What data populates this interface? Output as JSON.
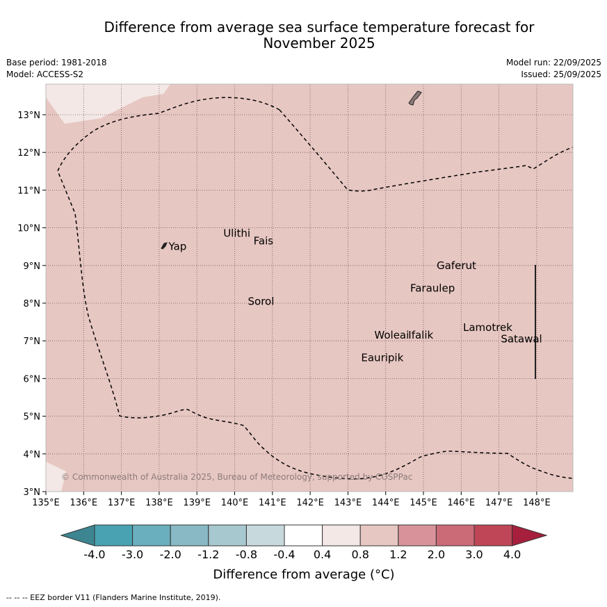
{
  "title_line1": "Difference from average sea surface temperature forecast for",
  "title_line2": "November 2025",
  "base_period": "Base period: 1981-2018",
  "model": "Model: ACCESS-S2",
  "model_run": "Model run: 22/09/2025",
  "issued": "Issued: 25/09/2025",
  "copyright": "© Commonwealth of Australia 2025, Bureau of Meteorology, supported by COSPPac",
  "footer": "-- -- -- EEZ border V11 (Flanders Marine Institute, 2019).",
  "colorbar": {
    "label": "Difference from average (°C)",
    "tick_labels": [
      "-4.0",
      "-3.0",
      "-2.0",
      "-1.2",
      "-0.8",
      "-0.4",
      "0.4",
      "0.8",
      "1.2",
      "2.0",
      "3.0",
      "4.0"
    ],
    "colors": [
      "#3d8591",
      "#48a2b2",
      "#6aafbd",
      "#88b9c5",
      "#a8c8cf",
      "#c7d9dc",
      "#ffffff",
      "#f3e8e6",
      "#e7c7c2",
      "#d8939a",
      "#cc6b78",
      "#bf4656",
      "#a6203d"
    ]
  },
  "chart_data": {
    "type": "map",
    "title": "Difference from average sea surface temperature forecast for November 2025",
    "x_range_lon": [
      135,
      149
    ],
    "y_range_lat": [
      3,
      13.8
    ],
    "x_tick_labels": [
      "135°E",
      "136°E",
      "137°E",
      "138°E",
      "139°E",
      "140°E",
      "141°E",
      "142°E",
      "143°E",
      "144°E",
      "145°E",
      "146°E",
      "147°E",
      "148°E"
    ],
    "y_tick_labels": [
      "3°N",
      "4°N",
      "5°N",
      "6°N",
      "7°N",
      "8°N",
      "9°N",
      "10°N",
      "11°N",
      "12°N",
      "13°N"
    ],
    "background_category": "0.8 to 1.2",
    "places": [
      {
        "name": "Yap",
        "lon": 138.25,
        "lat": 9.5
      },
      {
        "name": "Ulithi",
        "lon": 139.7,
        "lat": 9.85
      },
      {
        "name": "Fais",
        "lon": 140.5,
        "lat": 9.65
      },
      {
        "name": "Gaferut",
        "lon": 145.35,
        "lat": 9.0
      },
      {
        "name": "Faraulep",
        "lon": 144.65,
        "lat": 8.4
      },
      {
        "name": "Sorol",
        "lon": 140.35,
        "lat": 8.05
      },
      {
        "name": "Lamotrek",
        "lon": 146.05,
        "lat": 7.35
      },
      {
        "name": "Woleai",
        "lon": 143.7,
        "lat": 7.15
      },
      {
        "name": "Ifalik",
        "lon": 144.6,
        "lat": 7.15
      },
      {
        "name": "Satawal",
        "lon": 147.05,
        "lat": 7.05
      },
      {
        "name": "Eauripik",
        "lon": 143.35,
        "lat": 6.55
      }
    ]
  }
}
